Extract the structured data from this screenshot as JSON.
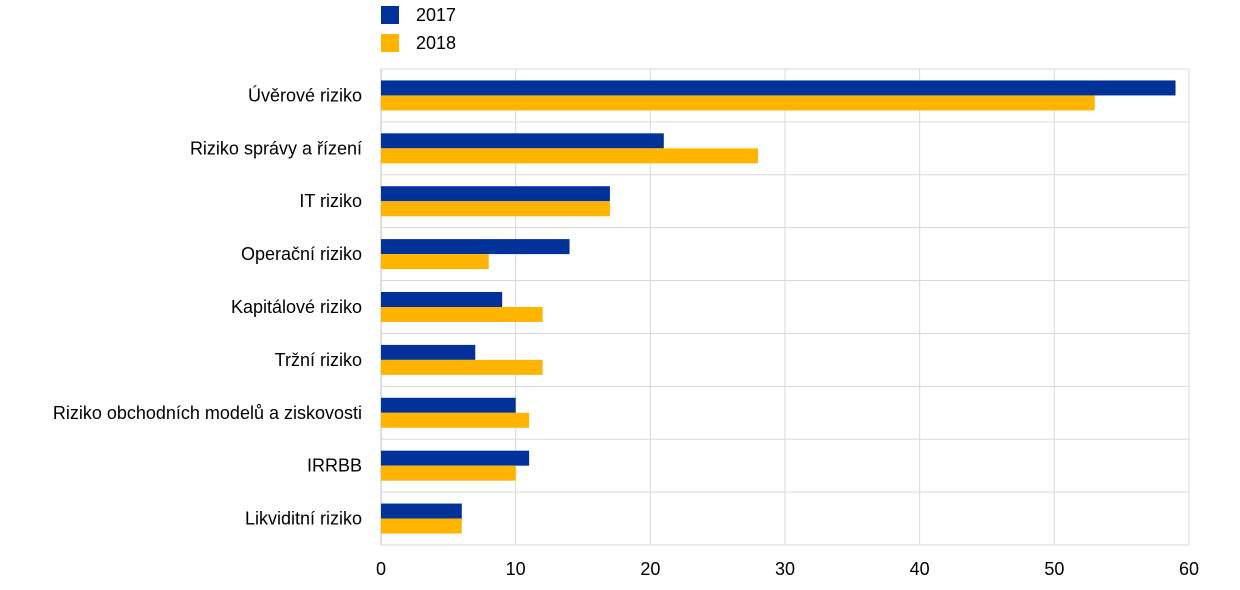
{
  "chart_data": {
    "type": "bar",
    "orientation": "horizontal",
    "categories": [
      "Úvěrové riziko",
      "Riziko správy a řízení",
      "IT riziko",
      "Operační riziko",
      "Kapitálové riziko",
      "Tržní riziko",
      "Riziko obchodních modelů a ziskovosti",
      "IRRBB",
      "Likviditní riziko"
    ],
    "series": [
      {
        "name": "2017",
        "color": "#003299",
        "values": [
          59,
          21,
          17,
          14,
          9,
          7,
          10,
          11,
          6
        ]
      },
      {
        "name": "2018",
        "color": "#FFB400",
        "values": [
          53,
          28,
          17,
          8,
          12,
          12,
          11,
          10,
          6
        ]
      }
    ],
    "xlim": [
      0,
      60
    ],
    "xticks": [
      0,
      10,
      20,
      30,
      40,
      50,
      60
    ],
    "title": "",
    "xlabel": "",
    "ylabel": "",
    "grid": true,
    "legend_position": "top-left"
  }
}
